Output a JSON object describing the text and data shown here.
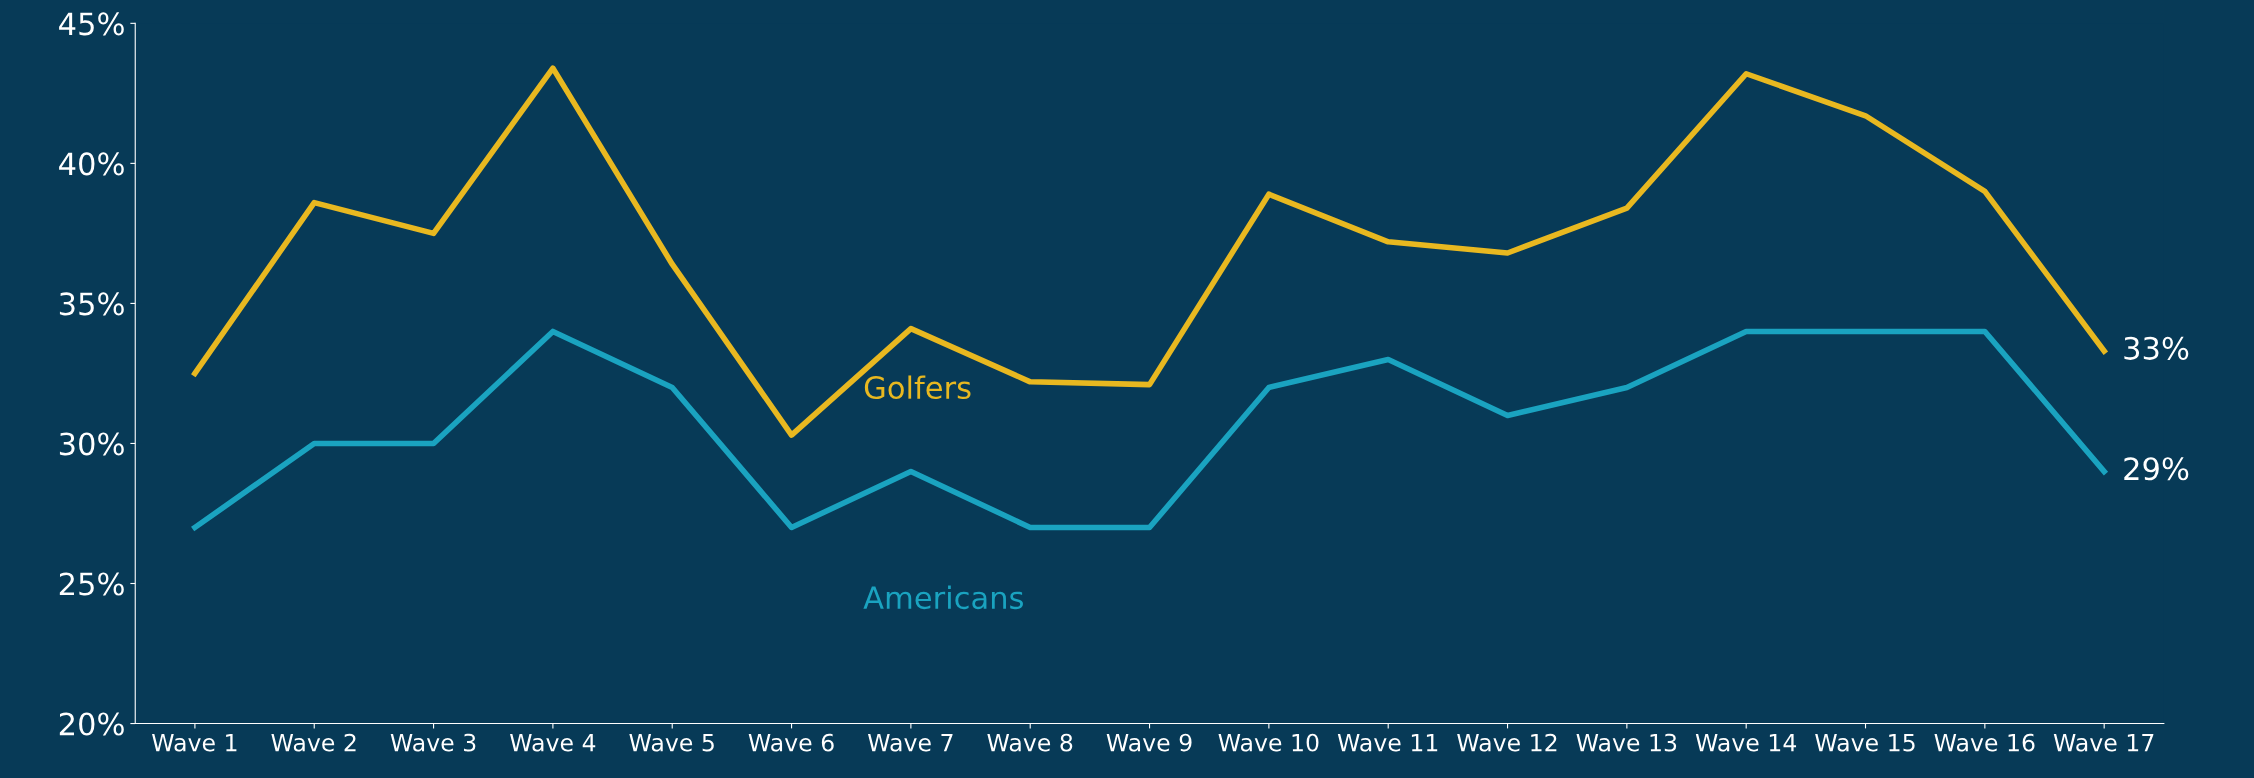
{
  "chart_data": {
    "type": "line",
    "categories": [
      "Wave 1",
      "Wave 2",
      "Wave 3",
      "Wave 4",
      "Wave 5",
      "Wave 6",
      "Wave 7",
      "Wave 8",
      "Wave 9",
      "Wave 10",
      "Wave 11",
      "Wave 12",
      "Wave 13",
      "Wave 14",
      "Wave 15",
      "Wave 16",
      "Wave 17"
    ],
    "series": [
      {
        "name": "Golfers",
        "color": "#e8b820",
        "values": [
          32.5,
          38.6,
          37.5,
          43.4,
          36.4,
          30.3,
          34.1,
          32.2,
          32.1,
          38.9,
          37.2,
          36.8,
          38.4,
          43.2,
          41.7,
          39.0,
          33.3
        ],
        "value_labels": [
          null,
          null,
          null,
          null,
          null,
          null,
          null,
          null,
          null,
          null,
          null,
          null,
          null,
          null,
          null,
          null,
          "33%"
        ]
      },
      {
        "name": "Americans",
        "color": "#1aa3c0",
        "values": [
          27,
          30,
          30,
          34,
          32,
          27,
          29,
          27,
          27,
          32,
          33,
          31,
          32,
          34,
          34,
          34,
          29
        ],
        "value_labels": [
          null,
          null,
          null,
          null,
          null,
          null,
          null,
          null,
          null,
          null,
          null,
          null,
          null,
          null,
          null,
          null,
          "29%"
        ]
      }
    ],
    "ylim": [
      20,
      45
    ],
    "yticks": [
      {
        "value": 20,
        "label": "20%"
      },
      {
        "value": 25,
        "label": "25%"
      },
      {
        "value": 30,
        "label": "30%"
      },
      {
        "value": 35,
        "label": "35%"
      },
      {
        "value": 40,
        "label": "40%"
      },
      {
        "value": 45,
        "label": "45%"
      }
    ],
    "grid": false,
    "legend": false,
    "marker": "none",
    "line_style": "solid"
  }
}
